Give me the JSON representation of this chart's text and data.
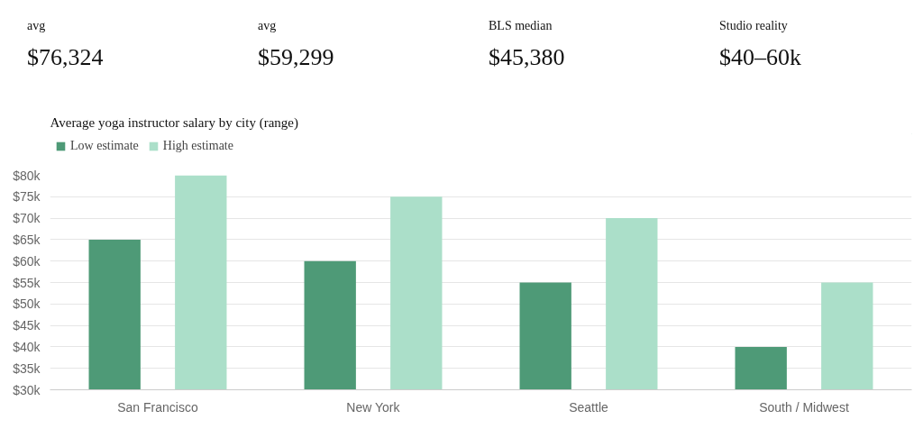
{
  "chart_data": [
    {
      "type": "other",
      "annotations": [
        "avg",
        "$76,324",
        "avg",
        "$59,299",
        "BLS median",
        "$45,380",
        "Studio reality",
        "$40–60k"
      ]
    },
    {
      "type": "bar",
      "title": "Average yoga instructor salary by city (range)",
      "categories": [
        "San Francisco",
        "New York",
        "Seattle",
        "South / Midwest"
      ],
      "series": [
        {
          "name": "Low estimate",
          "color": "#4e9a77",
          "values": [
            65000,
            60000,
            55000,
            40000
          ]
        },
        {
          "name": "High estimate",
          "color": "#abdfc9",
          "values": [
            80000,
            75000,
            70000,
            55000
          ]
        }
      ],
      "ylim": [
        30000,
        80000
      ],
      "yticks": [
        {
          "value": 30000,
          "label": "$30k"
        },
        {
          "value": 35000,
          "label": "$35k"
        },
        {
          "value": 40000,
          "label": "$40k"
        },
        {
          "value": 45000,
          "label": "$45k"
        },
        {
          "value": 50000,
          "label": "$50k"
        },
        {
          "value": 55000,
          "label": "$55k"
        },
        {
          "value": 60000,
          "label": "$60k"
        },
        {
          "value": 65000,
          "label": "$65k"
        },
        {
          "value": 70000,
          "label": "$70k"
        },
        {
          "value": 75000,
          "label": "$75k"
        },
        {
          "value": 80000,
          "label": "$80k"
        }
      ],
      "grid": "y",
      "legend": "top left"
    }
  ]
}
